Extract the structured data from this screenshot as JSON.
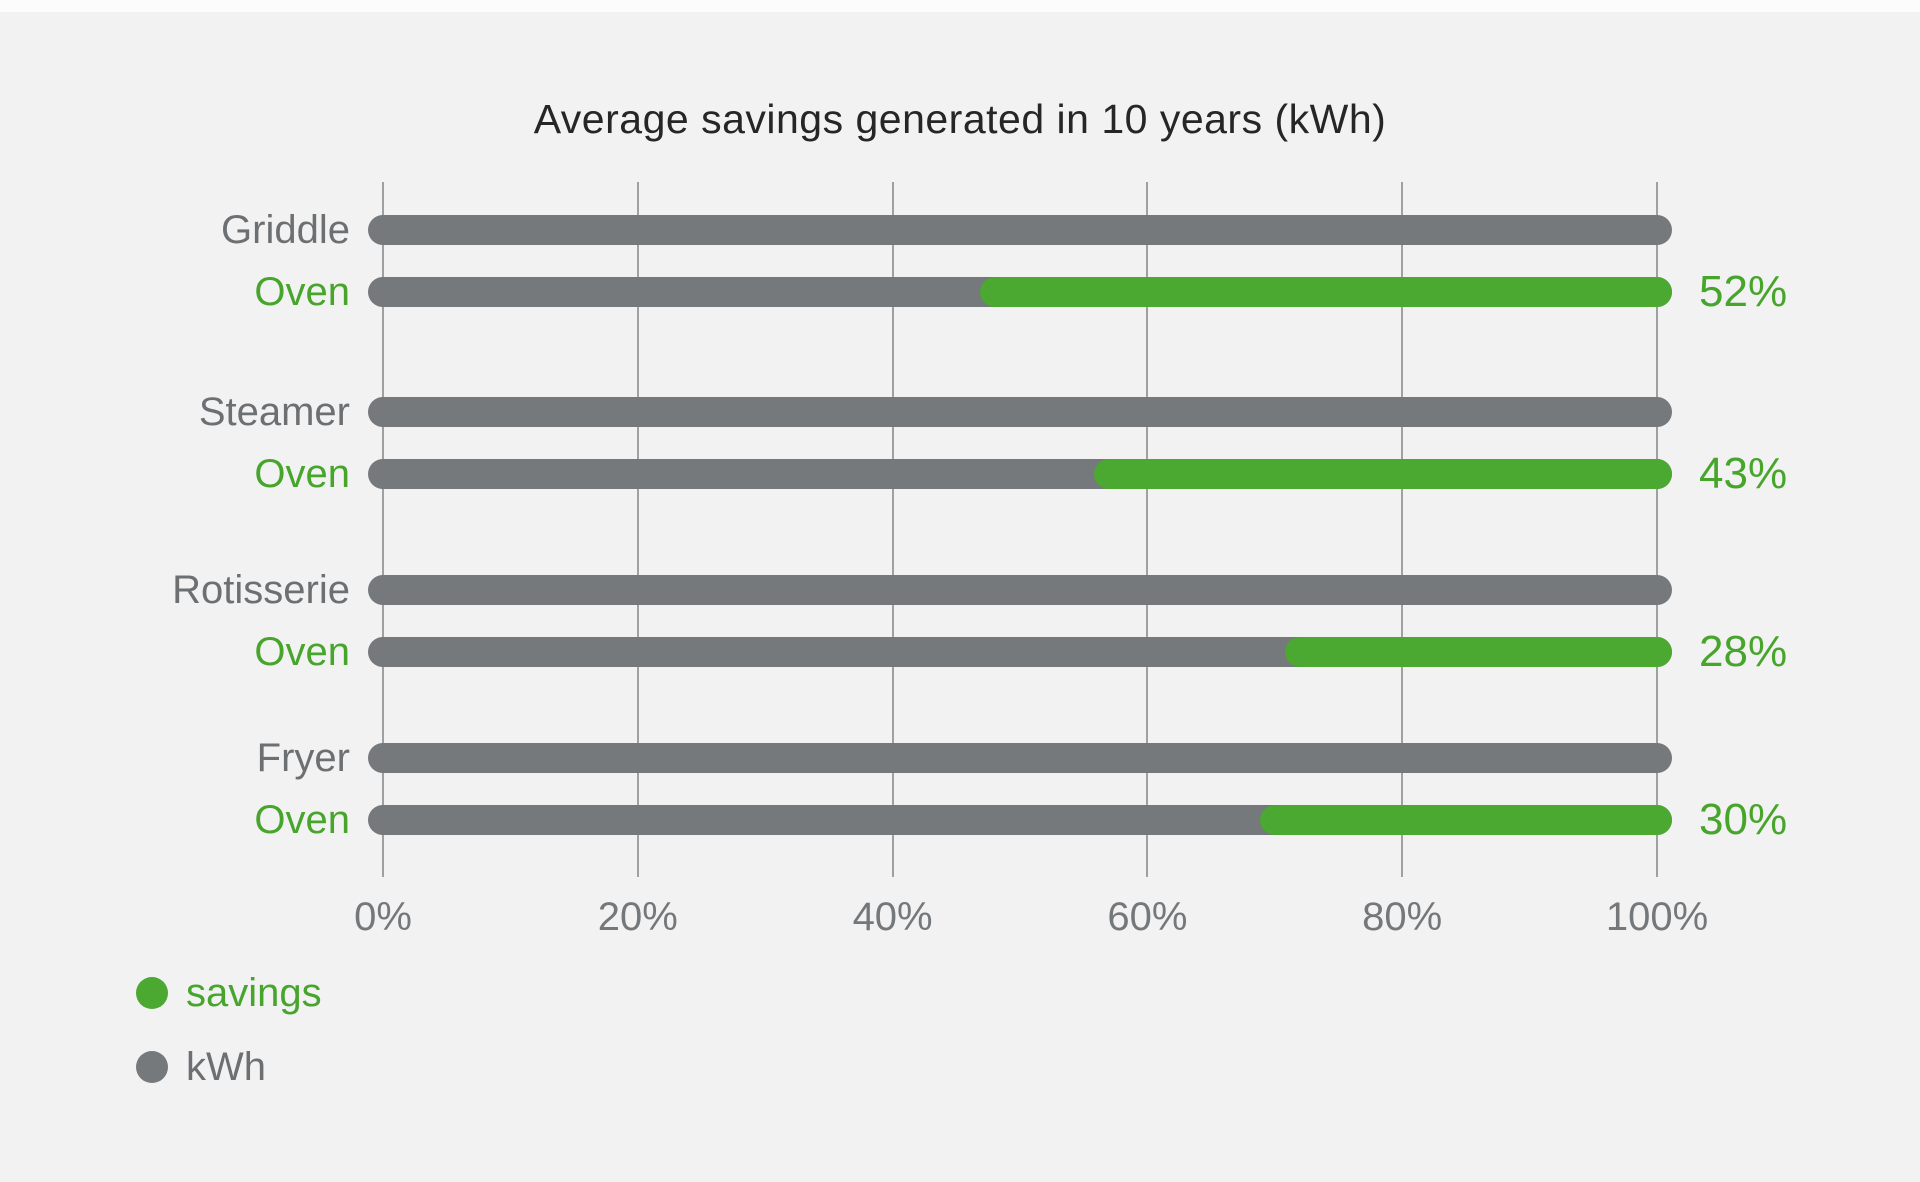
{
  "chart_data": {
    "type": "bar",
    "orientation": "horizontal",
    "title": "Average savings generated in 10 years (kWh)",
    "x_axis": {
      "ticks": [
        "0%",
        "20%",
        "40%",
        "60%",
        "80%",
        "100%"
      ],
      "range_pct": [
        0,
        100
      ],
      "gridlines": true
    },
    "groups": [
      {
        "equipment": "Griddle",
        "equipment_bar_pct": 100,
        "oven_bar_pct": 100,
        "oven_savings_pct": 52
      },
      {
        "equipment": "Steamer",
        "equipment_bar_pct": 100,
        "oven_bar_pct": 100,
        "oven_savings_pct": 43
      },
      {
        "equipment": "Rotisserie",
        "equipment_bar_pct": 100,
        "oven_bar_pct": 100,
        "oven_savings_pct": 28
      },
      {
        "equipment": "Fryer",
        "equipment_bar_pct": 100,
        "oven_bar_pct": 100,
        "oven_savings_pct": 30
      }
    ],
    "rows": [
      {
        "label": "Griddle",
        "bar_pct": 100
      },
      {
        "label": "Oven",
        "bar_pct": 100,
        "savings_pct": 52,
        "value_label": "52%"
      },
      {
        "label": "Steamer",
        "bar_pct": 100
      },
      {
        "label": "Oven",
        "bar_pct": 100,
        "savings_pct": 43,
        "value_label": "43%"
      },
      {
        "label": "Rotisserie",
        "bar_pct": 100
      },
      {
        "label": "Oven",
        "bar_pct": 100,
        "savings_pct": 28,
        "value_label": "28%"
      },
      {
        "label": "Fryer",
        "bar_pct": 100
      },
      {
        "label": "Oven",
        "bar_pct": 100,
        "savings_pct": 30,
        "value_label": "30%"
      }
    ],
    "legend": {
      "position": "bottom-left",
      "items": [
        {
          "label": "savings",
          "color": "#4BA831"
        },
        {
          "label": "kWh",
          "color": "#75797B"
        }
      ]
    },
    "colors": {
      "background": "#F2F2F3",
      "kwh_bar": "#75797B",
      "savings_bar": "#4BA831",
      "grid": "#9EA0A2",
      "title_text": "#262626",
      "axis_text": "#75787B",
      "oven_label_text": "#47A52C",
      "equipment_label_text": "#6D7073"
    }
  }
}
